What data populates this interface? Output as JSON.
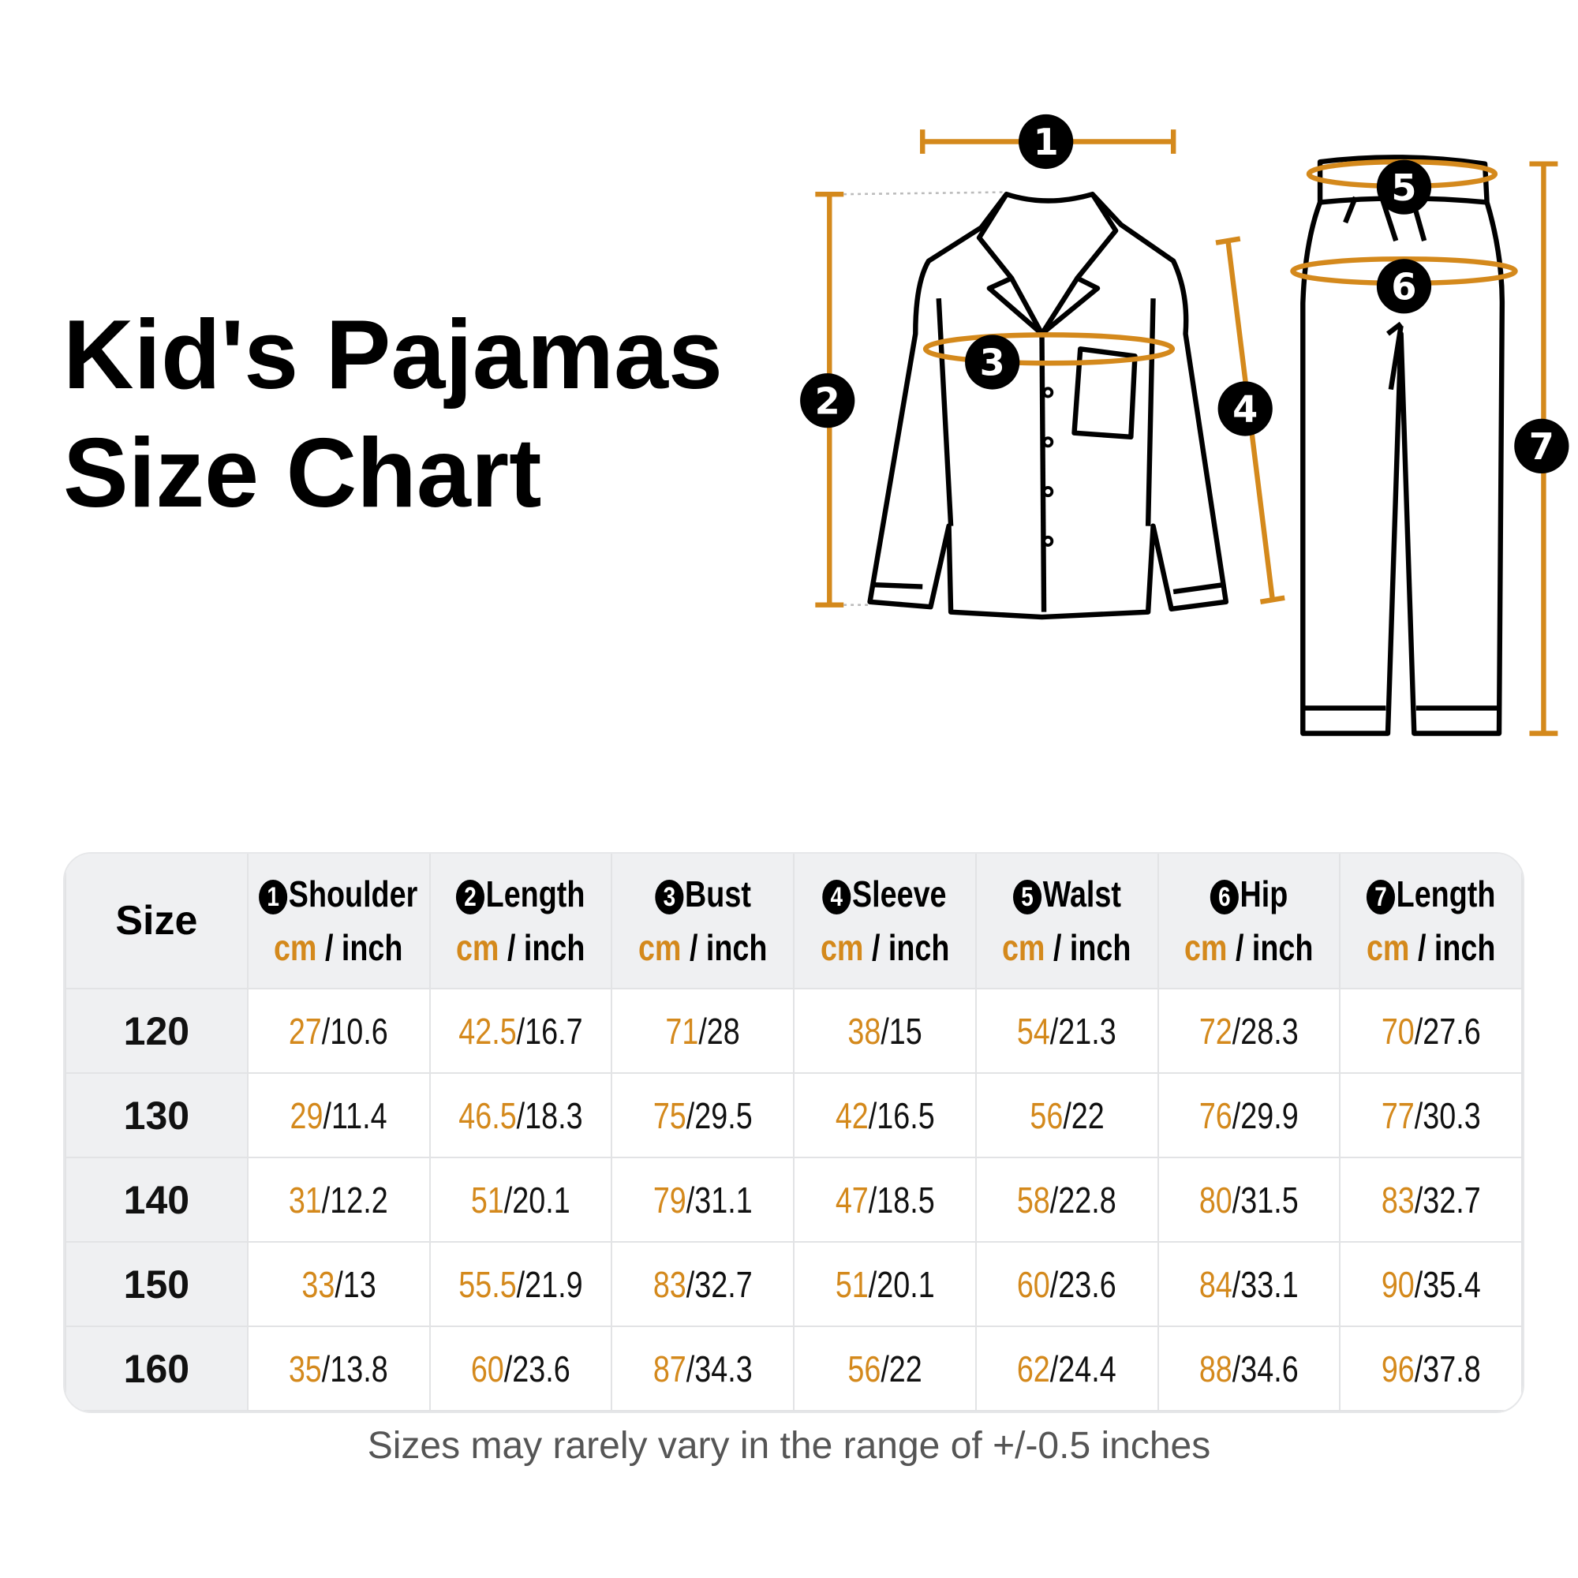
{
  "title": {
    "line1": "Kid's Pajamas",
    "line2": "Size Chart"
  },
  "accent_color": "#d4891c",
  "diagram_markers": [
    "1",
    "2",
    "3",
    "4",
    "5",
    "6",
    "7"
  ],
  "table": {
    "size_header": "Size",
    "unit_cm": "cm",
    "unit_sep": " / ",
    "unit_inch": "inch",
    "columns": [
      {
        "num": "1",
        "label": "Shoulder"
      },
      {
        "num": "2",
        "label": "Length"
      },
      {
        "num": "3",
        "label": "Bust"
      },
      {
        "num": "4",
        "label": "Sleeve"
      },
      {
        "num": "5",
        "label": "Walst"
      },
      {
        "num": "6",
        "label": "Hip"
      },
      {
        "num": "7",
        "label": "Length"
      }
    ],
    "rows": [
      {
        "size": "120",
        "values": [
          [
            "27",
            "10.6"
          ],
          [
            "42.5",
            "16.7"
          ],
          [
            "71",
            "28"
          ],
          [
            "38",
            "15"
          ],
          [
            "54",
            "21.3"
          ],
          [
            "72",
            "28.3"
          ],
          [
            "70",
            "27.6"
          ]
        ]
      },
      {
        "size": "130",
        "values": [
          [
            "29",
            "11.4"
          ],
          [
            "46.5",
            "18.3"
          ],
          [
            "75",
            "29.5"
          ],
          [
            "42",
            "16.5"
          ],
          [
            "56",
            "22"
          ],
          [
            "76",
            "29.9"
          ],
          [
            "77",
            "30.3"
          ]
        ]
      },
      {
        "size": "140",
        "values": [
          [
            "31",
            "12.2"
          ],
          [
            "51",
            "20.1"
          ],
          [
            "79",
            "31.1"
          ],
          [
            "47",
            "18.5"
          ],
          [
            "58",
            "22.8"
          ],
          [
            "80",
            "31.5"
          ],
          [
            "83",
            "32.7"
          ]
        ]
      },
      {
        "size": "150",
        "values": [
          [
            "33",
            "13"
          ],
          [
            "55.5",
            "21.9"
          ],
          [
            "83",
            "32.7"
          ],
          [
            "51",
            "20.1"
          ],
          [
            "60",
            "23.6"
          ],
          [
            "84",
            "33.1"
          ],
          [
            "90",
            "35.4"
          ]
        ]
      },
      {
        "size": "160",
        "values": [
          [
            "35",
            "13.8"
          ],
          [
            "60",
            "23.6"
          ],
          [
            "87",
            "34.3"
          ],
          [
            "56",
            "22"
          ],
          [
            "62",
            "24.4"
          ],
          [
            "88",
            "34.6"
          ],
          [
            "96",
            "37.8"
          ]
        ]
      }
    ]
  },
  "note": "Sizes may rarely vary in the range of +/-0.5 inches"
}
